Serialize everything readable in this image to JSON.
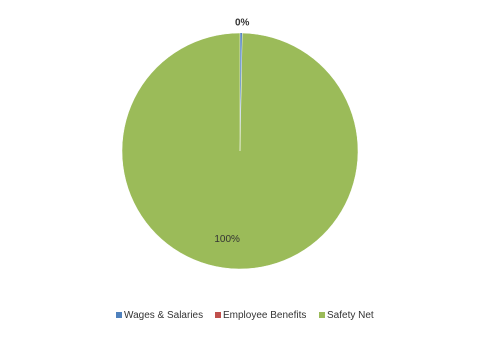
{
  "chart_data": {
    "type": "pie",
    "categories": [
      "Wages & Salaries",
      "Employee Benefits",
      "Safety Net"
    ],
    "values": [
      0.3,
      0,
      99.7
    ],
    "value_labels": [
      "0%",
      null,
      "100%"
    ],
    "colors": [
      "#4f81bd",
      "#c0504d",
      "#9bbb59"
    ],
    "legend": "bottom"
  }
}
